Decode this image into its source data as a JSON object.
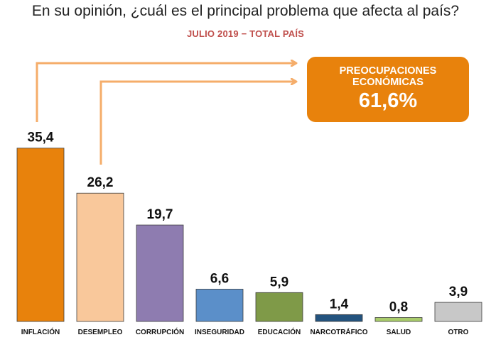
{
  "title": "En su opinión, ¿cuál es el principal problema que afecta al país?",
  "subtitle": "JULIO 2019 − TOTAL PAÍS",
  "callout": {
    "line1": "PREOCUPACIONES",
    "line2": "ECONÓMICAS",
    "value": "61,6%",
    "color": "#e8820c"
  },
  "chart_data": {
    "type": "bar",
    "categories": [
      "INFLACIÓN",
      "DESEMPLEO",
      "CORRUPCIÓN",
      "INSEGURIDAD",
      "EDUCACIÓN",
      "NARCOTRÁFICO",
      "SALUD",
      "OTRO"
    ],
    "values": [
      35.4,
      26.2,
      19.7,
      6.6,
      5.9,
      1.4,
      0.8,
      3.9
    ],
    "value_labels": [
      "35,4",
      "26,2",
      "19,7",
      "6,6",
      "5,9",
      "1,4",
      "0,8",
      "3,9"
    ],
    "colors": [
      "#e8820c",
      "#f9c89b",
      "#8e7cb0",
      "#5b8fc9",
      "#7f9a48",
      "#23537e",
      "#a9cc6b",
      "#c8c8c8"
    ],
    "grid": false,
    "legend": "none",
    "arrow_color": "#f5ad6a"
  }
}
